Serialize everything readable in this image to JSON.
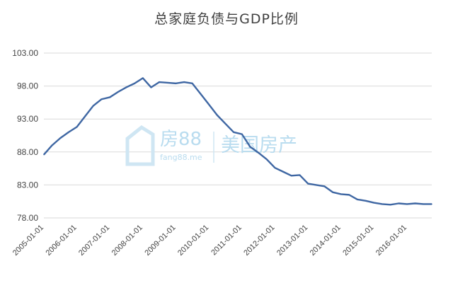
{
  "chart_data": {
    "type": "line",
    "title": "总家庭负债与GDP比例",
    "xlabel": "",
    "ylabel": "",
    "y_ticks": [
      "103.00",
      "98.00",
      "93.00",
      "88.00",
      "83.00",
      "78.00"
    ],
    "ylim": [
      78,
      103
    ],
    "x_ticks": [
      "2005-01-01",
      "2006-01-01",
      "2007-01-01",
      "2008-01-01",
      "2009-01-01",
      "2010-01-01",
      "2011-01-01",
      "2012-01-01",
      "2013-01-01",
      "2014-01-01",
      "2015-01-01",
      "2016-01-01"
    ],
    "xlim": [
      "2005-01-01",
      "2016-10-01"
    ],
    "grid": true,
    "legend": "none",
    "line_color": "#3f67a3",
    "series": [
      {
        "x": [
          "2005-01-01",
          "2005-04-01",
          "2005-07-01",
          "2005-10-01",
          "2006-01-01",
          "2006-04-01",
          "2006-07-01",
          "2006-10-01",
          "2007-01-01",
          "2007-04-01",
          "2007-07-01",
          "2007-10-01",
          "2008-01-01",
          "2008-04-01",
          "2008-07-01",
          "2008-10-01",
          "2009-01-01",
          "2009-04-01",
          "2009-07-01",
          "2009-10-01",
          "2010-01-01",
          "2010-04-01",
          "2010-07-01",
          "2010-10-01",
          "2011-01-01",
          "2011-04-01",
          "2011-07-01",
          "2011-10-01",
          "2012-01-01",
          "2012-04-01",
          "2012-07-01",
          "2012-10-01",
          "2013-01-01",
          "2013-04-01",
          "2013-07-01",
          "2013-10-01",
          "2014-01-01",
          "2014-04-01",
          "2014-07-01",
          "2014-10-01",
          "2015-01-01",
          "2015-04-01",
          "2015-07-01",
          "2015-10-01",
          "2016-01-01",
          "2016-04-01",
          "2016-07-01",
          "2016-10-01"
        ],
        "values": [
          87.6,
          89.0,
          90.1,
          91.0,
          91.8,
          93.4,
          95.0,
          96.0,
          96.3,
          97.1,
          97.8,
          98.4,
          99.2,
          97.8,
          98.6,
          98.5,
          98.4,
          98.6,
          98.4,
          96.8,
          95.2,
          93.6,
          92.3,
          91.0,
          90.7,
          88.8,
          87.9,
          86.9,
          85.6,
          85.0,
          84.4,
          84.5,
          83.2,
          83.0,
          82.8,
          81.9,
          81.6,
          81.5,
          80.8,
          80.6,
          80.3,
          80.1,
          80.0,
          80.2,
          80.1,
          80.2,
          80.1,
          80.1
        ]
      }
    ]
  },
  "watermark": {
    "brand": "房88",
    "site": "fang88.me",
    "tagline": "美国房产"
  }
}
